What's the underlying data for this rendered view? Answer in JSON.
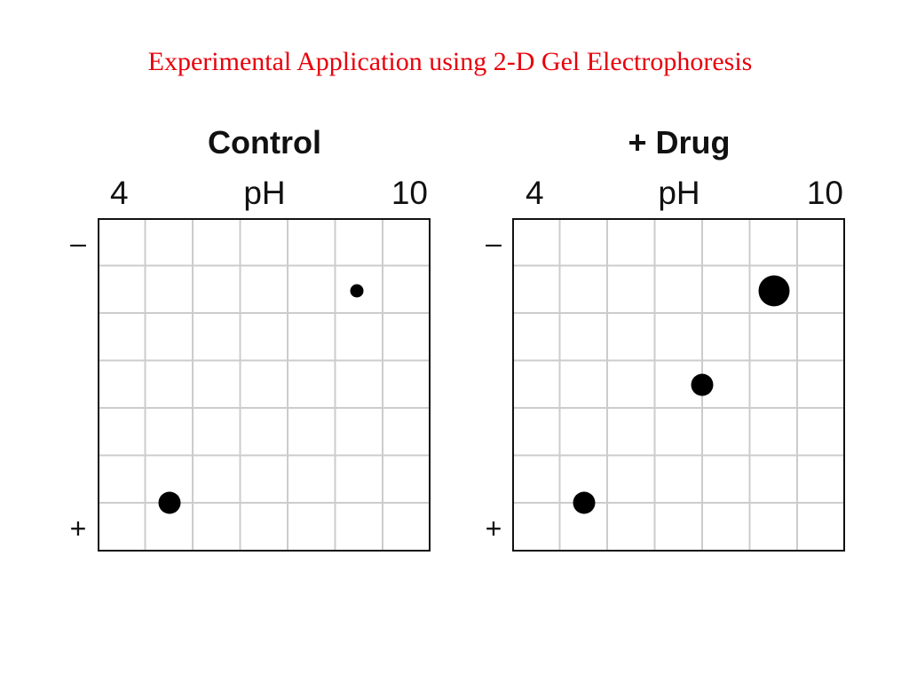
{
  "title": "Experimental Application using 2-D Gel Electrophoresis",
  "colors": {
    "title": "#e8000b",
    "grid_line": "#cccccc",
    "gel_border": "#111111",
    "spot": "#000000",
    "text": "#111111"
  },
  "panels": [
    {
      "heading": "Control",
      "ph_low": "4",
      "ph_axis_label": "pH",
      "ph_high": "10",
      "top_sign": "–",
      "bottom_sign": "+"
    },
    {
      "heading": "+ Drug",
      "ph_low": "4",
      "ph_axis_label": "pH",
      "ph_high": "10",
      "top_sign": "–",
      "bottom_sign": "+"
    }
  ]
}
